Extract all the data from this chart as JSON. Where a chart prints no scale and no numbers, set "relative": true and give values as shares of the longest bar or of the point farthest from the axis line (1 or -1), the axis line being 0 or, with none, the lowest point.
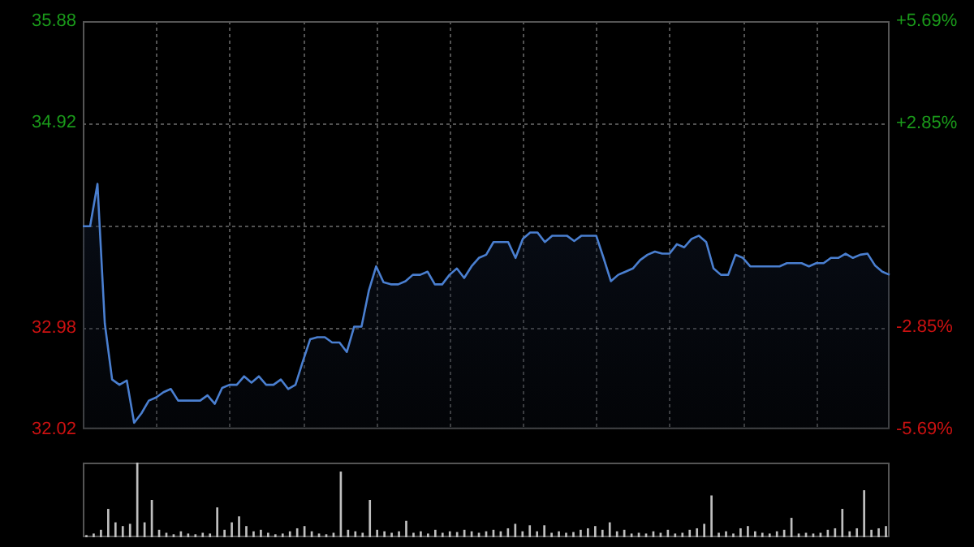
{
  "chart_data": [
    {
      "type": "area",
      "categories": [
        null,
        null,
        null,
        null,
        null,
        null,
        null,
        null,
        null,
        null,
        null,
        null,
        null,
        null,
        null,
        null,
        null,
        null,
        null,
        null,
        null,
        null,
        null,
        null,
        null,
        null,
        null,
        null,
        null,
        null,
        null,
        null,
        null,
        null,
        null,
        null,
        null,
        null,
        null,
        null,
        null,
        null,
        null,
        null,
        null,
        null,
        null,
        null,
        null,
        null,
        null,
        null,
        null,
        null,
        null,
        null,
        null,
        null,
        null,
        null,
        null,
        null,
        null,
        null,
        null,
        null,
        null,
        null,
        null,
        null,
        null,
        null,
        null,
        null,
        null,
        null,
        null,
        null,
        null,
        null,
        null,
        null,
        null,
        null,
        null,
        null,
        null,
        null,
        null,
        null,
        null,
        null,
        null,
        null,
        null,
        null,
        null,
        null,
        null,
        null,
        null,
        null,
        null,
        null,
        null,
        null,
        null,
        null,
        null,
        null,
        null
      ],
      "series": [
        {
          "color": "#4a7fd0",
          "values": [
            33.94,
            33.94,
            34.34,
            33.02,
            32.49,
            32.44,
            32.48,
            32.08,
            32.17,
            32.29,
            32.32,
            32.37,
            32.4,
            32.29,
            32.29,
            32.29,
            32.29,
            32.34,
            32.26,
            32.41,
            32.44,
            32.44,
            32.52,
            32.46,
            32.52,
            32.44,
            32.44,
            32.49,
            32.4,
            32.44,
            32.66,
            32.87,
            32.89,
            32.89,
            32.84,
            32.84,
            32.75,
            32.99,
            32.99,
            33.33,
            33.56,
            33.41,
            33.39,
            33.39,
            33.42,
            33.48,
            33.48,
            33.51,
            33.39,
            33.39,
            33.48,
            33.54,
            33.45,
            33.56,
            33.64,
            33.67,
            33.79,
            33.79,
            33.79,
            33.64,
            33.82,
            33.88,
            33.88,
            33.79,
            33.85,
            33.85,
            33.85,
            33.8,
            33.85,
            33.85,
            33.85,
            33.64,
            33.42,
            33.48,
            33.51,
            33.54,
            33.62,
            33.67,
            33.7,
            33.68,
            33.68,
            33.77,
            33.74,
            33.82,
            33.85,
            33.79,
            33.54,
            33.48,
            33.48,
            33.67,
            33.64,
            33.56,
            33.56,
            33.56,
            33.56,
            33.56,
            33.59,
            33.59,
            33.59,
            33.56,
            33.59,
            33.59,
            33.64,
            33.64,
            33.68,
            33.64,
            33.67,
            33.68,
            33.57,
            33.51,
            33.48
          ]
        }
      ],
      "ylim": [
        32.02,
        35.88
      ],
      "yticks": [
        32.02,
        32.98,
        {
          "value": 33.95,
          "label": null
        },
        34.92,
        35.88
      ],
      "y2lim": [
        -5.69,
        5.69
      ],
      "y2ticks": [
        {
          "value": -5.69,
          "label": "-5.69%"
        },
        {
          "value": -2.85,
          "label": "-2.85%"
        },
        {
          "value": 0,
          "label": null
        },
        {
          "value": 2.85,
          "label": "+2.85%"
        },
        {
          "value": 5.69,
          "label": "+5.69%"
        }
      ],
      "grid": true,
      "legend": false,
      "marker": "none",
      "line_style": "solid"
    },
    {
      "type": "bar",
      "relative": true,
      "categories": [
        null,
        null,
        null,
        null,
        null,
        null,
        null,
        null,
        null,
        null,
        null,
        null,
        null,
        null,
        null,
        null,
        null,
        null,
        null,
        null,
        null,
        null,
        null,
        null,
        null,
        null,
        null,
        null,
        null,
        null,
        null,
        null,
        null,
        null,
        null,
        null,
        null,
        null,
        null,
        null,
        null,
        null,
        null,
        null,
        null,
        null,
        null,
        null,
        null,
        null,
        null,
        null,
        null,
        null,
        null,
        null,
        null,
        null,
        null,
        null,
        null,
        null,
        null,
        null,
        null,
        null,
        null,
        null,
        null,
        null,
        null,
        null,
        null,
        null,
        null,
        null,
        null,
        null,
        null,
        null,
        null,
        null,
        null,
        null,
        null,
        null,
        null,
        null,
        null,
        null,
        null,
        null,
        null,
        null,
        null,
        null,
        null,
        null,
        null,
        null,
        null,
        null,
        null,
        null,
        null,
        null,
        null,
        null,
        null,
        null,
        null
      ],
      "color": "#bfbfbf",
      "values": [
        0.03,
        0.05,
        0.1,
        0.38,
        0.2,
        0.15,
        0.18,
        1,
        0.2,
        0.5,
        0.1,
        0.06,
        0.04,
        0.08,
        0.05,
        0.04,
        0.06,
        0.05,
        0.4,
        0.1,
        0.2,
        0.28,
        0.15,
        0.08,
        0.1,
        0.06,
        0.04,
        0.05,
        0.08,
        0.12,
        0.15,
        0.08,
        0.05,
        0.04,
        0.06,
        0.88,
        0.1,
        0.08,
        0.06,
        0.5,
        0.1,
        0.08,
        0.06,
        0.08,
        0.22,
        0.06,
        0.08,
        0.05,
        0.1,
        0.06,
        0.08,
        0.07,
        0.1,
        0.08,
        0.06,
        0.08,
        0.1,
        0.08,
        0.12,
        0.18,
        0.08,
        0.16,
        0.08,
        0.16,
        0.06,
        0.08,
        0.06,
        0.07,
        0.1,
        0.12,
        0.15,
        0.1,
        0.2,
        0.08,
        0.1,
        0.05,
        0.06,
        0.05,
        0.08,
        0.06,
        0.1,
        0.05,
        0.06,
        0.1,
        0.12,
        0.18,
        0.56,
        0.06,
        0.08,
        0.05,
        0.12,
        0.15,
        0.08,
        0.06,
        0.05,
        0.08,
        0.1,
        0.26,
        0.05,
        0.06,
        0.05,
        0.06,
        0.1,
        0.12,
        0.38,
        0.08,
        0.12,
        0.63,
        0.1,
        0.12,
        0.15
      ],
      "legend": false
    }
  ]
}
